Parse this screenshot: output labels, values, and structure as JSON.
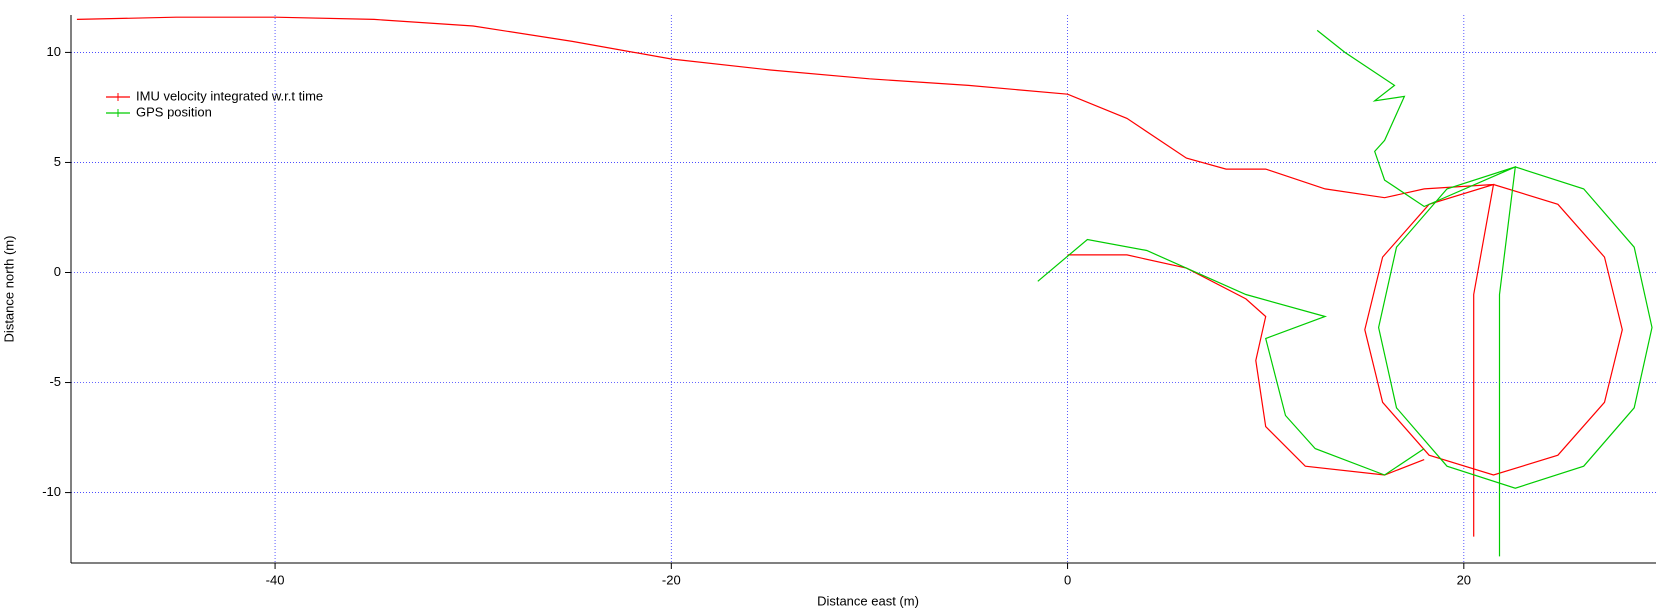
{
  "chart_data": {
    "type": "line",
    "xlabel": "Distance east (m)",
    "ylabel": "Distance north (m)",
    "xlim": [
      -50.3,
      29.7
    ],
    "ylim": [
      -13.2,
      11.7
    ],
    "xticks": [
      -40,
      -20,
      0,
      20
    ],
    "yticks": [
      -10,
      -5,
      0,
      5,
      10
    ],
    "grid": true,
    "grid_color": "#3333ff",
    "legend": "upper left",
    "series": [
      {
        "name": "IMU velocity integrated w.r.t time",
        "color": "#ff0000",
        "x": [
          -50,
          -45,
          -40,
          -35,
          -30,
          -25,
          -20,
          -15,
          -10,
          -5,
          0,
          3,
          6,
          8,
          10,
          13,
          16,
          18,
          21.5,
          24.75,
          27.1,
          28,
          27.1,
          24.75,
          21.5,
          18.25,
          15.9,
          15,
          15.9,
          18.25,
          21.5,
          20.5,
          20.5,
          null,
          0,
          3,
          6,
          9,
          10,
          9.5,
          10,
          12,
          16,
          18
        ],
        "values": [
          11.5,
          11.6,
          11.6,
          11.5,
          11.2,
          10.5,
          9.7,
          9.2,
          8.8,
          8.5,
          8.1,
          7.0,
          5.2,
          4.7,
          4.7,
          3.8,
          3.4,
          3.8,
          4.0,
          3.1,
          0.7,
          -2.6,
          -5.9,
          -8.3,
          -9.2,
          -8.3,
          -5.9,
          -2.6,
          0.7,
          3.1,
          4.0,
          -1.0,
          -12.0,
          null,
          0.8,
          0.8,
          0.2,
          -1.2,
          -2.0,
          -4.0,
          -7.0,
          -8.8,
          -9.2,
          -8.5
        ]
      },
      {
        "name": "GPS position",
        "color": "#00cc00",
        "x": [
          12.6,
          14,
          16.5,
          15.5,
          17,
          16,
          15.5,
          16,
          18,
          22.6,
          26.05,
          28.6,
          29.5,
          28.6,
          26.05,
          22.6,
          19.15,
          16.6,
          15.7,
          16.6,
          19.15,
          22.6,
          21.8,
          21.8,
          null,
          -1.5,
          1,
          4,
          9,
          13,
          10,
          11,
          12.5,
          16,
          18
        ],
        "values": [
          11.0,
          10.0,
          8.5,
          7.8,
          8.0,
          6.0,
          5.5,
          4.2,
          3.0,
          4.8,
          3.8,
          1.15,
          -2.5,
          -6.15,
          -8.8,
          -9.8,
          -8.8,
          -6.15,
          -2.5,
          1.15,
          3.8,
          4.8,
          -1.0,
          -12.9,
          null,
          -0.4,
          1.5,
          1.0,
          -1.0,
          -2.0,
          -3.0,
          -6.5,
          -8.0,
          -9.2,
          -8.0
        ]
      }
    ]
  }
}
